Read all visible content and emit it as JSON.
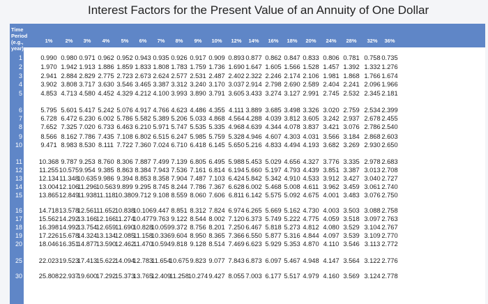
{
  "title": "Interest Factors for the Present Value of an Annuity of One Dollar",
  "time_header": [
    "Time",
    "Period",
    "(e.g.,",
    "year)"
  ],
  "rates": [
    "1%",
    "2%",
    "3%",
    "4%",
    "5%",
    "6%",
    "7%",
    "8%",
    "9%",
    "10%",
    "12%",
    "14%",
    "16%",
    "18%",
    "20%",
    "24%",
    "28%",
    "32%",
    "36%"
  ],
  "rows": [
    {
      "period": "1",
      "values": [
        "0.990",
        "0.980",
        "0.971",
        "0.962",
        "0.952",
        "0.943",
        "0.935",
        "0.926",
        "0.917",
        "0.909",
        "0.893",
        "0.877",
        "0.862",
        "0.847",
        "0.833",
        "0.806",
        "0.781",
        "0.758",
        "0.735"
      ]
    },
    {
      "period": "2",
      "values": [
        "1.970",
        "1.942",
        "1.913",
        "1.886",
        "1.859",
        "1.833",
        "1.808",
        "1.783",
        "1.759",
        "1.736",
        "1.690",
        "1.647",
        "1.605",
        "1.566",
        "1.528",
        "1.457",
        "1.392",
        "1.332",
        "1.276"
      ]
    },
    {
      "period": "3",
      "values": [
        "2.941",
        "2.884",
        "2.829",
        "2.775",
        "2.723",
        "2.673",
        "2.624",
        "2.577",
        "2.531",
        "2.487",
        "2.402",
        "2.322",
        "2.246",
        "2.174",
        "2.106",
        "1.981",
        "1.868",
        "1.766",
        "1.674"
      ]
    },
    {
      "period": "4",
      "values": [
        "3.902",
        "3.808",
        "3.717",
        "3.630",
        "3.546",
        "3.465",
        "3.387",
        "3.312",
        "3.240",
        "3.170",
        "3.037",
        "2.914",
        "2.798",
        "2.690",
        "2.589",
        "2.404",
        "2.241",
        "2.096",
        "1.966"
      ]
    },
    {
      "period": "5",
      "values": [
        "4.853",
        "4.713",
        "4.580",
        "4.452",
        "4.329",
        "4.212",
        "4.100",
        "3.993",
        "3.890",
        "3.791",
        "3.605",
        "3.433",
        "3.274",
        "3.127",
        "2.991",
        "2.745",
        "2.532",
        "2.345",
        "2.181"
      ]
    },
    {
      "period": "6",
      "values": [
        "5.795",
        "5.601",
        "5.417",
        "5.242",
        "5.076",
        "4.917",
        "4.766",
        "4.623",
        "4.486",
        "4.355",
        "4.111",
        "3.889",
        "3.685",
        "3.498",
        "3.326",
        "3.020",
        "2.759",
        "2.534",
        "2.399"
      ]
    },
    {
      "period": "7",
      "values": [
        "6.728",
        "6.472",
        "6.230",
        "6.002",
        "5.786",
        "5.582",
        "5.389",
        "5.206",
        "5.033",
        "4.868",
        "4.564",
        "4.288",
        "4.039",
        "3.812",
        "3.605",
        "3.242",
        "2.937",
        "2.678",
        "2.455"
      ]
    },
    {
      "period": "8",
      "values": [
        "7.652",
        "7.325",
        "7.020",
        "6.733",
        "6.463",
        "6.210",
        "5.971",
        "5.747",
        "5.535",
        "5.335",
        "4.968",
        "4.639",
        "4.344",
        "4.078",
        "3.837",
        "3.421",
        "3.076",
        "2.786",
        "2.540"
      ]
    },
    {
      "period": "9",
      "values": [
        "8.566",
        "8.162",
        "7.786",
        "7.435",
        "7.108",
        "6.802",
        "6.515",
        "6.247",
        "5.985",
        "5.759",
        "5.328",
        "4.946",
        "4.607",
        "4.303",
        "4.031",
        "3.566",
        "3.184",
        "2.868",
        "2.603"
      ]
    },
    {
      "period": "10",
      "values": [
        "9.471",
        "8.983",
        "8.530",
        "8.111",
        "7.722",
        "7.360",
        "7.024",
        "6.710",
        "6.418",
        "6.145",
        "5.650",
        "5.216",
        "4.833",
        "4.494",
        "4.193",
        "3.682",
        "3.269",
        "2.930",
        "2.650"
      ]
    },
    {
      "period": "11",
      "values": [
        "10.368",
        "9.787",
        "9.253",
        "8.760",
        "8.306",
        "7.887",
        "7.499",
        "7.139",
        "6.805",
        "6.495",
        "5.988",
        "5.453",
        "5.029",
        "4.656",
        "4.327",
        "3.776",
        "3.335",
        "2.978",
        "2.683"
      ]
    },
    {
      "period": "12",
      "values": [
        "11.255",
        "10.575",
        "9.954",
        "9.385",
        "8.863",
        "8.384",
        "7.943",
        "7.536",
        "7.161",
        "6.814",
        "6.194",
        "5.660",
        "5.197",
        "4.793",
        "4.439",
        "3.851",
        "3.387",
        "3.013",
        "2.708"
      ]
    },
    {
      "period": "13",
      "values": [
        "12.134",
        "11.348",
        "10.635",
        "9.986",
        "9.394",
        "8.853",
        "8.358",
        "7.904",
        "7.487",
        "7.103",
        "6.424",
        "5.842",
        "5.342",
        "4.910",
        "4.533",
        "3.912",
        "3.427",
        "3.040",
        "2.727"
      ]
    },
    {
      "period": "14",
      "values": [
        "13.004",
        "12.106",
        "11.296",
        "10.563",
        "9.899",
        "9.295",
        "8.745",
        "8.244",
        "7.786",
        "7.367",
        "6.628",
        "6.002",
        "5.468",
        "5.008",
        "4.611",
        "3.962",
        "3.459",
        "3.061",
        "2.740"
      ]
    },
    {
      "period": "15",
      "values": [
        "13.865",
        "12.849",
        "11.938",
        "11.118",
        "10.380",
        "9.712",
        "9.108",
        "8.559",
        "8.060",
        "7.606",
        "6.811",
        "6.142",
        "5.575",
        "5.092",
        "4.675",
        "4.001",
        "3.483",
        "3.076",
        "2.750"
      ]
    },
    {
      "period": "16",
      "values": [
        "14.718",
        "13.578",
        "12.561",
        "11.652",
        "10.838",
        "10.106",
        "9.447",
        "8.851",
        "8.312",
        "7.824",
        "6.974",
        "6.265",
        "5.669",
        "5.162",
        "4.730",
        "4.003",
        "3.503",
        "3.088",
        "2.758"
      ]
    },
    {
      "period": "17",
      "values": [
        "15.562",
        "14.292",
        "13.166",
        "12.166",
        "11.274",
        "10.477",
        "9.763",
        "9.122",
        "8.544",
        "8.002",
        "7.120",
        "6.373",
        "5.749",
        "5.222",
        "4.775",
        "4.059",
        "3.518",
        "3.097",
        "2.763"
      ]
    },
    {
      "period": "18",
      "values": [
        "16.398",
        "14.992",
        "13.754",
        "12.659",
        "11.690",
        "10.828",
        "10.059",
        "9.372",
        "8.756",
        "8.201",
        "7.250",
        "6.467",
        "5.818",
        "5.273",
        "4.812",
        "4.080",
        "3.529",
        "3.104",
        "2.767"
      ]
    },
    {
      "period": "19",
      "values": [
        "17.226",
        "15.678",
        "14.324",
        "13.134",
        "12.085",
        "11.158",
        "10.336",
        "9.604",
        "8.950",
        "8.365",
        "7.366",
        "6.550",
        "5.877",
        "5.316",
        "4.844",
        "4.097",
        "3.539",
        "3.109",
        "2.770"
      ]
    },
    {
      "period": "20",
      "values": [
        "18.046",
        "16.351",
        "14.877",
        "13.590",
        "12.462",
        "11.470",
        "10.594",
        "9.818",
        "9.128",
        "8.514",
        "7.469",
        "6.623",
        "5.929",
        "5.353",
        "4.870",
        "4.110",
        "3.546",
        "3.113",
        "2.772"
      ]
    },
    {
      "period": "25",
      "values": [
        "22.023",
        "19.523",
        "17.413",
        "15.622",
        "14.094",
        "12.783",
        "11.654",
        "10.675",
        "9.823",
        "9.077",
        "7.843",
        "6.873",
        "6.097",
        "5.467",
        "4.948",
        "4.147",
        "3.564",
        "3.122",
        "2.776"
      ]
    },
    {
      "period": "30",
      "values": [
        "25.808",
        "22.937",
        "19.600",
        "17.292",
        "15.373",
        "13.765",
        "12.409",
        "11.258",
        "10.274",
        "9.427",
        "8.055",
        "7.003",
        "6.177",
        "5.517",
        "4.979",
        "4.160",
        "3.569",
        "3.124",
        "2.778"
      ]
    }
  ]
}
